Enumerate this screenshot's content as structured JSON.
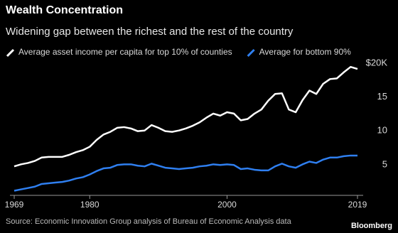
{
  "chart_data": {
    "type": "line",
    "title": "Wealth Concentration",
    "subtitle": "Widening gap between the richest and the rest of the country",
    "x": [
      1969,
      1970,
      1971,
      1972,
      1973,
      1974,
      1975,
      1976,
      1977,
      1978,
      1979,
      1980,
      1981,
      1982,
      1983,
      1984,
      1985,
      1986,
      1987,
      1988,
      1989,
      1990,
      1991,
      1992,
      1993,
      1994,
      1995,
      1996,
      1997,
      1998,
      1999,
      2000,
      2001,
      2002,
      2003,
      2004,
      2005,
      2006,
      2007,
      2008,
      2009,
      2010,
      2011,
      2012,
      2013,
      2014,
      2015,
      2016,
      2017,
      2018,
      2019
    ],
    "series": [
      {
        "name": "Average asset income per capita for top 10% of counties",
        "color": "#ffffff",
        "values": [
          5.6,
          5.9,
          6.1,
          6.4,
          6.9,
          7.0,
          7.0,
          7.0,
          7.3,
          7.7,
          8.0,
          8.5,
          9.5,
          10.3,
          10.7,
          11.3,
          11.4,
          11.2,
          10.8,
          10.9,
          11.7,
          11.3,
          10.8,
          10.7,
          10.9,
          11.2,
          11.6,
          12.1,
          12.8,
          13.4,
          13.1,
          13.6,
          13.4,
          12.4,
          12.6,
          13.4,
          14.0,
          15.3,
          16.3,
          16.4,
          14.0,
          13.6,
          15.4,
          16.8,
          16.3,
          17.8,
          18.5,
          18.6,
          19.5,
          20.3,
          20.0
        ]
      },
      {
        "name": "Average for bottom 90%",
        "color": "#2f7ff0",
        "values": [
          2.0,
          2.2,
          2.4,
          2.6,
          3.0,
          3.1,
          3.2,
          3.3,
          3.5,
          3.8,
          4.0,
          4.4,
          4.9,
          5.3,
          5.4,
          5.8,
          5.9,
          5.9,
          5.7,
          5.6,
          6.0,
          5.7,
          5.4,
          5.3,
          5.2,
          5.3,
          5.4,
          5.6,
          5.7,
          5.9,
          5.8,
          5.9,
          5.8,
          5.2,
          5.3,
          5.1,
          5.0,
          5.0,
          5.6,
          6.0,
          5.6,
          5.4,
          5.9,
          6.3,
          6.1,
          6.6,
          6.9,
          6.9,
          7.1,
          7.2,
          7.2
        ]
      }
    ],
    "xlim": [
      1969,
      2019
    ],
    "xticks": [
      1969,
      1980,
      2000,
      2019
    ],
    "ylim": [
      1,
      21
    ],
    "yticks": [
      {
        "value": 20,
        "label": "$20K"
      },
      15,
      10,
      5
    ],
    "source": "Source: Economic Innovation Group analysis of Bureau of Economic Analysis data",
    "credit": "Bloomberg"
  }
}
